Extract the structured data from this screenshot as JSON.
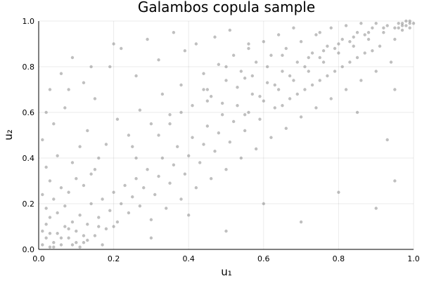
{
  "chart_data": {
    "type": "scatter",
    "title": "Galambos copula sample",
    "xlabel": "u₁",
    "ylabel": "u₂",
    "xlim": [
      0,
      1
    ],
    "ylim": [
      0,
      1
    ],
    "xticks": [
      0.0,
      0.2,
      0.4,
      0.6,
      0.8,
      1.0
    ],
    "yticks": [
      0.0,
      0.2,
      0.4,
      0.6,
      0.8,
      1.0
    ],
    "xtick_labels": [
      "0.0",
      "0.2",
      "0.4",
      "0.6",
      "0.8",
      "1.0"
    ],
    "ytick_labels": [
      "0.0",
      "0.2",
      "0.4",
      "0.6",
      "0.8",
      "1.0"
    ],
    "grid": true,
    "legend": "none",
    "marker_color": "#808080",
    "series": [
      {
        "points": [
          [
            0.01,
            0.02
          ],
          [
            0.02,
            0.05
          ],
          [
            0.03,
            0.01
          ],
          [
            0.01,
            0.08
          ],
          [
            0.04,
            0.03
          ],
          [
            0.02,
            0.11
          ],
          [
            0.05,
            0.07
          ],
          [
            0.03,
            0.14
          ],
          [
            0.06,
            0.02
          ],
          [
            0.07,
            0.1
          ],
          [
            0.02,
            0.18
          ],
          [
            0.08,
            0.05
          ],
          [
            0.05,
            0.16
          ],
          [
            0.09,
            0.12
          ],
          [
            0.01,
            0.24
          ],
          [
            0.1,
            0.08
          ],
          [
            0.04,
            0.22
          ],
          [
            0.11,
            0.15
          ],
          [
            0.07,
            0.19
          ],
          [
            0.12,
            0.03
          ],
          [
            0.03,
            0.3
          ],
          [
            0.13,
            0.11
          ],
          [
            0.06,
            0.27
          ],
          [
            0.14,
            0.2
          ],
          [
            0.08,
            0.25
          ],
          [
            0.15,
            0.06
          ],
          [
            0.02,
            0.36
          ],
          [
            0.16,
            0.14
          ],
          [
            0.1,
            0.31
          ],
          [
            0.17,
            0.22
          ],
          [
            0.05,
            0.41
          ],
          [
            0.18,
            0.09
          ],
          [
            0.12,
            0.28
          ],
          [
            0.19,
            0.17
          ],
          [
            0.01,
            0.48
          ],
          [
            0.2,
            0.25
          ],
          [
            0.09,
            0.38
          ],
          [
            0.21,
            0.12
          ],
          [
            0.14,
            0.33
          ],
          [
            0.22,
            0.2
          ],
          [
            0.04,
            0.55
          ],
          [
            0.23,
            0.28
          ],
          [
            0.11,
            0.45
          ],
          [
            0.24,
            0.16
          ],
          [
            0.07,
            0.62
          ],
          [
            0.25,
            0.23
          ],
          [
            0.16,
            0.4
          ],
          [
            0.26,
            0.31
          ],
          [
            0.03,
            0.7
          ],
          [
            0.27,
            0.19
          ],
          [
            0.13,
            0.52
          ],
          [
            0.28,
            0.27
          ],
          [
            0.06,
            0.77
          ],
          [
            0.29,
            0.35
          ],
          [
            0.18,
            0.46
          ],
          [
            0.3,
            0.13
          ],
          [
            0.09,
            0.84
          ],
          [
            0.31,
            0.24
          ],
          [
            0.21,
            0.57
          ],
          [
            0.32,
            0.32
          ],
          [
            0.15,
            0.66
          ],
          [
            0.33,
            0.4
          ],
          [
            0.24,
            0.5
          ],
          [
            0.34,
            0.18
          ],
          [
            0.12,
            0.73
          ],
          [
            0.35,
            0.29
          ],
          [
            0.27,
            0.61
          ],
          [
            0.36,
            0.37
          ],
          [
            0.19,
            0.8
          ],
          [
            0.37,
            0.45
          ],
          [
            0.3,
            0.55
          ],
          [
            0.38,
            0.22
          ],
          [
            0.22,
            0.88
          ],
          [
            0.39,
            0.33
          ],
          [
            0.33,
            0.68
          ],
          [
            0.4,
            0.41
          ],
          [
            0.26,
            0.76
          ],
          [
            0.41,
            0.49
          ],
          [
            0.35,
            0.59
          ],
          [
            0.42,
            0.27
          ],
          [
            0.29,
            0.92
          ],
          [
            0.43,
            0.38
          ],
          [
            0.38,
            0.72
          ],
          [
            0.44,
            0.46
          ],
          [
            0.32,
            0.83
          ],
          [
            0.45,
            0.54
          ],
          [
            0.41,
            0.63
          ],
          [
            0.46,
            0.31
          ],
          [
            0.36,
            0.95
          ],
          [
            0.47,
            0.43
          ],
          [
            0.44,
            0.77
          ],
          [
            0.48,
            0.51
          ],
          [
            0.39,
            0.87
          ],
          [
            0.49,
            0.59
          ],
          [
            0.46,
            0.67
          ],
          [
            0.5,
            0.35
          ],
          [
            0.42,
            0.9
          ],
          [
            0.51,
            0.47
          ],
          [
            0.48,
            0.81
          ],
          [
            0.52,
            0.56
          ],
          [
            0.45,
            0.7
          ],
          [
            0.53,
            0.63
          ],
          [
            0.5,
            0.74
          ],
          [
            0.54,
            0.4
          ],
          [
            0.47,
            0.93
          ],
          [
            0.55,
            0.52
          ],
          [
            0.52,
            0.85
          ],
          [
            0.56,
            0.6
          ],
          [
            0.49,
            0.64
          ],
          [
            0.57,
            0.68
          ],
          [
            0.54,
            0.78
          ],
          [
            0.58,
            0.44
          ],
          [
            0.51,
            0.96
          ],
          [
            0.59,
            0.57
          ],
          [
            0.56,
            0.88
          ],
          [
            0.6,
            0.65
          ],
          [
            0.53,
            0.71
          ],
          [
            0.61,
            0.73
          ],
          [
            0.58,
            0.82
          ],
          [
            0.62,
            0.49
          ],
          [
            0.55,
            0.59
          ],
          [
            0.63,
            0.62
          ],
          [
            0.6,
            0.91
          ],
          [
            0.64,
            0.7
          ],
          [
            0.57,
            0.76
          ],
          [
            0.65,
            0.78
          ],
          [
            0.62,
            0.85
          ],
          [
            0.66,
            0.53
          ],
          [
            0.59,
            0.67
          ],
          [
            0.67,
            0.66
          ],
          [
            0.64,
            0.94
          ],
          [
            0.68,
            0.74
          ],
          [
            0.61,
            0.8
          ],
          [
            0.69,
            0.82
          ],
          [
            0.66,
            0.88
          ],
          [
            0.7,
            0.58
          ],
          [
            0.63,
            0.72
          ],
          [
            0.71,
            0.7
          ],
          [
            0.68,
            0.97
          ],
          [
            0.72,
            0.78
          ],
          [
            0.65,
            0.63
          ],
          [
            0.73,
            0.86
          ],
          [
            0.7,
            0.91
          ],
          [
            0.74,
            0.62
          ],
          [
            0.67,
            0.76
          ],
          [
            0.75,
            0.74
          ],
          [
            0.72,
            0.84
          ],
          [
            0.76,
            0.82
          ],
          [
            0.69,
            0.68
          ],
          [
            0.77,
            0.89
          ],
          [
            0.74,
            0.94
          ],
          [
            0.78,
            0.66
          ],
          [
            0.71,
            0.8
          ],
          [
            0.79,
            0.78
          ],
          [
            0.76,
            0.87
          ],
          [
            0.8,
            0.86
          ],
          [
            0.73,
            0.72
          ],
          [
            0.81,
            0.92
          ],
          [
            0.78,
            0.97
          ],
          [
            0.82,
            0.7
          ],
          [
            0.75,
            0.84
          ],
          [
            0.83,
            0.82
          ],
          [
            0.8,
            0.9
          ],
          [
            0.84,
            0.89
          ],
          [
            0.77,
            0.76
          ],
          [
            0.85,
            0.95
          ],
          [
            0.82,
            0.98
          ],
          [
            0.86,
            0.74
          ],
          [
            0.79,
            0.88
          ],
          [
            0.87,
            0.86
          ],
          [
            0.84,
            0.93
          ],
          [
            0.88,
            0.92
          ],
          [
            0.81,
            0.8
          ],
          [
            0.89,
            0.97
          ],
          [
            0.86,
            0.99
          ],
          [
            0.9,
            0.78
          ],
          [
            0.83,
            0.91
          ],
          [
            0.91,
            0.89
          ],
          [
            0.88,
            0.95
          ],
          [
            0.92,
            0.95
          ],
          [
            0.85,
            0.84
          ],
          [
            0.93,
            0.98
          ],
          [
            0.9,
            0.99
          ],
          [
            0.94,
            0.82
          ],
          [
            0.87,
            0.94
          ],
          [
            0.95,
            0.92
          ],
          [
            0.92,
            0.97
          ],
          [
            0.96,
            0.97
          ],
          [
            0.89,
            0.87
          ],
          [
            0.97,
            0.99
          ],
          [
            0.98,
            0.98
          ],
          [
            0.99,
            0.99
          ],
          [
            0.97,
            0.96
          ],
          [
            0.99,
            0.97
          ],
          [
            0.96,
            0.99
          ],
          [
            0.98,
            1.0
          ],
          [
            0.95,
            0.97
          ],
          [
            0.99,
            1.0
          ],
          [
            0.97,
            0.98
          ],
          [
            1.0,
            0.99
          ],
          [
            0.1,
            0.03
          ],
          [
            0.2,
            0.1
          ],
          [
            0.3,
            0.05
          ],
          [
            0.4,
            0.15
          ],
          [
            0.5,
            0.08
          ],
          [
            0.6,
            0.2
          ],
          [
            0.7,
            0.12
          ],
          [
            0.8,
            0.25
          ],
          [
            0.9,
            0.18
          ],
          [
            0.95,
            0.3
          ],
          [
            0.15,
            0.35
          ],
          [
            0.25,
            0.45
          ],
          [
            0.35,
            0.55
          ],
          [
            0.45,
            0.65
          ],
          [
            0.55,
            0.75
          ],
          [
            0.65,
            0.85
          ],
          [
            0.75,
            0.95
          ],
          [
            0.85,
            0.6
          ],
          [
            0.95,
            0.7
          ],
          [
            0.93,
            0.48
          ],
          [
            0.02,
            0.6
          ],
          [
            0.08,
            0.7
          ],
          [
            0.14,
            0.8
          ],
          [
            0.2,
            0.9
          ],
          [
            0.26,
            0.4
          ],
          [
            0.32,
            0.5
          ],
          [
            0.38,
            0.6
          ],
          [
            0.44,
            0.7
          ],
          [
            0.5,
            0.8
          ],
          [
            0.56,
            0.9
          ],
          [
            0.04,
            0.01
          ],
          [
            0.09,
            0.02
          ],
          [
            0.11,
            0.01
          ],
          [
            0.13,
            0.04
          ],
          [
            0.17,
            0.02
          ],
          [
            0.06,
            0.05
          ],
          [
            0.03,
            0.07
          ],
          [
            0.08,
            0.09
          ],
          [
            0.12,
            0.06
          ],
          [
            0.16,
            0.1
          ]
        ]
      }
    ]
  }
}
